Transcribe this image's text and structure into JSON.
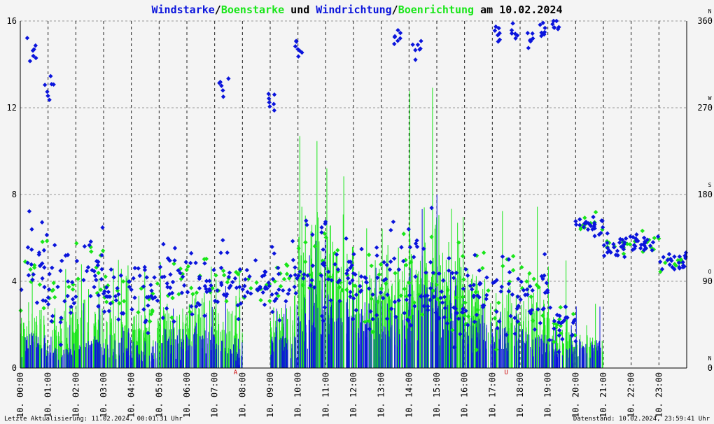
{
  "title": {
    "part1": "Windstarke",
    "sep1": "/",
    "part2": "Boenstarke",
    "part3": " und ",
    "part4": "Windrichtung",
    "sep2": "/",
    "part5": "Boenrichtung",
    "part6": " am 10.02.2024"
  },
  "colors": {
    "wind": "#0a14dc",
    "gust": "#19e619",
    "grid": "#999999",
    "marker": "#cc0000",
    "background": "#f4f4f4"
  },
  "footer": {
    "left": "Letzte Aktualisierung: 11.02.2024, 00:01:31 Uhr",
    "right": "Datenstand: 10.02.2024, 23:59:41 Uhr"
  },
  "markers": [
    {
      "label": "A",
      "hour": 7.75
    },
    {
      "label": "U",
      "hour": 17.5
    }
  ],
  "chart_data": {
    "type": "scatter",
    "x_range": [
      0,
      24
    ],
    "y_left": {
      "range": [
        0,
        16
      ],
      "ticks": [
        "0",
        "4",
        "8",
        "12",
        "16"
      ]
    },
    "y_right": {
      "range": [
        0,
        360
      ],
      "ticks": [
        "0",
        "90",
        "180",
        "270",
        "360"
      ],
      "compass": [
        "N",
        "O",
        "S",
        "W",
        "N"
      ]
    },
    "x_tick_labels": [
      "10. 00:00",
      "10. 01:00",
      "10. 02:00",
      "10. 03:00",
      "10. 04:00",
      "10. 05:00",
      "10. 06:00",
      "10. 07:00",
      "10. 08:00",
      "10. 09:00",
      "10. 10:00",
      "10. 11:00",
      "10. 12:00",
      "10. 13:00",
      "10. 14:00",
      "10. 15:00",
      "10. 16:00",
      "10. 17:00",
      "10. 18:00",
      "10. 19:00",
      "10. 20:00",
      "10. 21:00",
      "10. 22:00",
      "10. 23:00"
    ],
    "grid": true,
    "series": [
      {
        "name": "Windstarke",
        "style": "vertical-lines",
        "color": "#0a14dc",
        "hourly_max": [
          3,
          2,
          3,
          2,
          2,
          3,
          3,
          4,
          0,
          3,
          6,
          6,
          5,
          5,
          9,
          8,
          4,
          3,
          3,
          2,
          3,
          0,
          0,
          0
        ],
        "hourly_avg": [
          1.0,
          0.8,
          1.0,
          0.9,
          0.8,
          1.2,
          1.3,
          0.9,
          0,
          1.1,
          2.5,
          2.5,
          1.9,
          2.0,
          3.0,
          2.5,
          1.6,
          1.3,
          1.2,
          0.8,
          1.0,
          0,
          0,
          0
        ]
      },
      {
        "name": "Boenstarke",
        "style": "vertical-lines",
        "color": "#19e619",
        "hourly_max": [
          5,
          5,
          5,
          5,
          5,
          5,
          5,
          5,
          0,
          5,
          13,
          10,
          7.5,
          7.5,
          13,
          7.5,
          5,
          7.5,
          7.5,
          5,
          3,
          0,
          0,
          0
        ],
        "hourly_avg": [
          1.8,
          1.8,
          2.0,
          1.8,
          1.8,
          2.0,
          2.2,
          2.0,
          0,
          2.0,
          4.5,
          4.2,
          3.5,
          3.6,
          5.0,
          4.0,
          2.8,
          2.6,
          2.5,
          1.5,
          1.0,
          0,
          0,
          0
        ]
      },
      {
        "name": "Windrichtung",
        "style": "points",
        "color": "#0a14dc",
        "hourly_center_deg": [
          105,
          80,
          100,
          75,
          80,
          90,
          85,
          85,
          90,
          95,
          105,
          95,
          90,
          105,
          85,
          75,
          80,
          70,
          80,
          45,
          150,
          125,
          130,
          110
        ],
        "hourly_spread_deg": [
          90,
          85,
          55,
          50,
          60,
          60,
          55,
          65,
          50,
          70,
          85,
          85,
          80,
          95,
          105,
          85,
          75,
          80,
          75,
          40,
          20,
          20,
          18,
          18
        ],
        "high_clusters": [
          {
            "hour": 0.4,
            "deg": 330
          },
          {
            "hour": 1.0,
            "deg": 290
          },
          {
            "hour": 7.3,
            "deg": 300
          },
          {
            "hour": 9.1,
            "deg": 270
          },
          {
            "hour": 10.0,
            "deg": 335
          },
          {
            "hour": 13.6,
            "deg": 345
          },
          {
            "hour": 14.3,
            "deg": 330
          },
          {
            "hour": 17.2,
            "deg": 350
          },
          {
            "hour": 17.8,
            "deg": 345
          },
          {
            "hour": 18.4,
            "deg": 345
          },
          {
            "hour": 18.8,
            "deg": 355
          },
          {
            "hour": 19.3,
            "deg": 355
          }
        ]
      },
      {
        "name": "Boenrichtung",
        "style": "points",
        "color": "#19e619",
        "hourly_center_deg": [
          105,
          80,
          100,
          75,
          80,
          90,
          85,
          85,
          90,
          95,
          105,
          95,
          90,
          105,
          85,
          75,
          80,
          70,
          80,
          45,
          150,
          125,
          130,
          110
        ],
        "hourly_spread_deg": [
          80,
          75,
          50,
          45,
          55,
          55,
          50,
          60,
          45,
          65,
          80,
          80,
          75,
          90,
          100,
          80,
          70,
          75,
          70,
          35,
          18,
          18,
          16,
          16
        ]
      }
    ]
  }
}
